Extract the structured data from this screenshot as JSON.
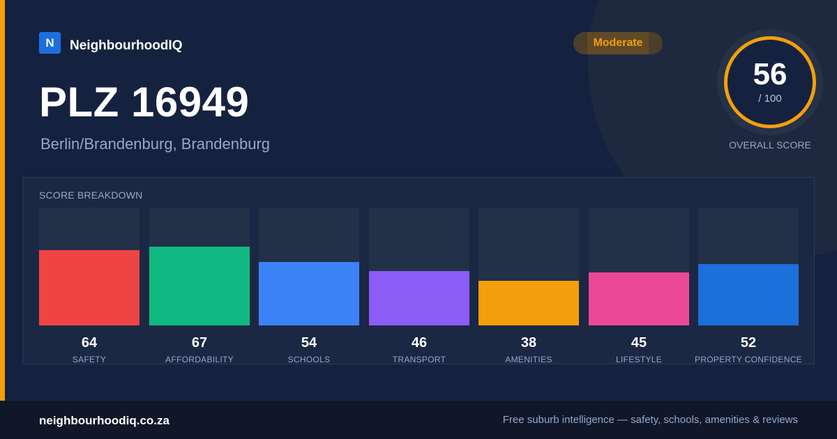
{
  "brand": {
    "logo_letter": "N",
    "name": "NeighbourhoodIQ"
  },
  "header": {
    "title": "PLZ 16949",
    "location": "Berlin/Brandenburg, Brandenburg",
    "rating_badge": "Moderate"
  },
  "overall_score": {
    "value": "56",
    "max_label": "/ 100",
    "caption": "OVERALL SCORE",
    "ring_color": "#f59e0b"
  },
  "breakdown": {
    "title": "SCORE BREAKDOWN",
    "items": [
      {
        "label": "SAFETY",
        "value": "64",
        "score": 64,
        "color": "#ef4444"
      },
      {
        "label": "AFFORDABILITY",
        "value": "67",
        "score": 67,
        "color": "#10b981"
      },
      {
        "label": "SCHOOLS",
        "value": "54",
        "score": 54,
        "color": "#3b82f6"
      },
      {
        "label": "TRANSPORT",
        "value": "46",
        "score": 46,
        "color": "#8b5cf6"
      },
      {
        "label": "AMENITIES",
        "value": "38",
        "score": 38,
        "color": "#f59e0b"
      },
      {
        "label": "LIFESTYLE",
        "value": "45",
        "score": 45,
        "color": "#ec4899"
      },
      {
        "label": "PROPERTY CONFIDENCE",
        "value": "52",
        "score": 52,
        "color": "#1d6fdb"
      }
    ]
  },
  "footer": {
    "domain": "neighbourhoodiq.co.za",
    "tagline": "Free suburb intelligence — safety, schools, amenities & reviews"
  },
  "colors": {
    "accent": "#f59e0b",
    "background": "#15223f",
    "footer": "#0f1729"
  }
}
